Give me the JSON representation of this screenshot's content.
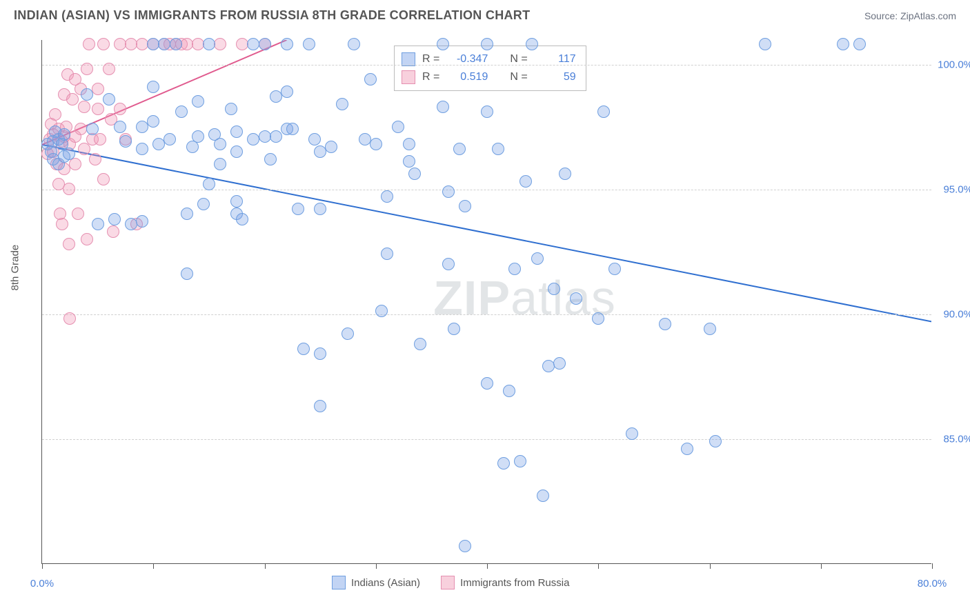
{
  "header": {
    "title": "INDIAN (ASIAN) VS IMMIGRANTS FROM RUSSIA 8TH GRADE CORRELATION CHART",
    "source": "Source: ZipAtlas.com"
  },
  "chart": {
    "type": "scatter",
    "ylabel": "8th Grade",
    "watermark": "ZIPatlas",
    "background_color": "#ffffff",
    "grid_color": "#d0d0d0",
    "axis_color": "#555555",
    "tick_label_color": "#4a7fd8",
    "marker_radius": 9,
    "xlim": [
      0,
      80
    ],
    "ylim": [
      80,
      101
    ],
    "x_ticks": [
      0,
      10,
      20,
      30,
      40,
      50,
      60,
      70,
      80
    ],
    "x_tick_labels": {
      "0": "0.0%",
      "80": "80.0%"
    },
    "y_ticks": [
      85,
      90,
      95,
      100
    ],
    "y_tick_labels": {
      "85": "85.0%",
      "90": "90.0%",
      "95": "95.0%",
      "100": "100.0%"
    },
    "series": {
      "blue": {
        "label": "Indians (Asian)",
        "fill": "rgba(120,160,230,0.35)",
        "stroke": "#6e9ee0",
        "trend_color": "#2f6fd0",
        "trend_width": 2,
        "trend": {
          "x1": 0,
          "y1": 96.8,
          "x2": 80,
          "y2": 89.7
        },
        "R": "-0.347",
        "N": "117",
        "points": [
          [
            0.5,
            96.8
          ],
          [
            0.8,
            96.5
          ],
          [
            1,
            96.9
          ],
          [
            1,
            96.2
          ],
          [
            1.2,
            97.3
          ],
          [
            1.5,
            97.0
          ],
          [
            1.5,
            96.0
          ],
          [
            1.8,
            96.8
          ],
          [
            2,
            97.2
          ],
          [
            2,
            96.3
          ],
          [
            2.4,
            96.4
          ],
          [
            4,
            98.8
          ],
          [
            4.5,
            97.4
          ],
          [
            5,
            93.6
          ],
          [
            6,
            98.6
          ],
          [
            6.5,
            93.8
          ],
          [
            7,
            97.5
          ],
          [
            7.5,
            96.9
          ],
          [
            8,
            93.6
          ],
          [
            9,
            97.5
          ],
          [
            9,
            96.6
          ],
          [
            9,
            93.7
          ],
          [
            10,
            100.8
          ],
          [
            10,
            99.1
          ],
          [
            10,
            97.7
          ],
          [
            10.5,
            96.8
          ],
          [
            11,
            100.8
          ],
          [
            11.5,
            97.0
          ],
          [
            12,
            100.8
          ],
          [
            12.5,
            98.1
          ],
          [
            13,
            94.0
          ],
          [
            13,
            91.6
          ],
          [
            13.5,
            96.7
          ],
          [
            14,
            98.5
          ],
          [
            14,
            97.1
          ],
          [
            14.5,
            94.4
          ],
          [
            15,
            100.8
          ],
          [
            15,
            95.2
          ],
          [
            15.5,
            97.2
          ],
          [
            16,
            96.8
          ],
          [
            16,
            96.0
          ],
          [
            17,
            98.2
          ],
          [
            17.5,
            97.3
          ],
          [
            17.5,
            96.5
          ],
          [
            17.5,
            94.5
          ],
          [
            17.5,
            94.0
          ],
          [
            18,
            93.8
          ],
          [
            19,
            97.0
          ],
          [
            19,
            100.8
          ],
          [
            20,
            97.1
          ],
          [
            20,
            100.8
          ],
          [
            20.5,
            96.2
          ],
          [
            21,
            98.7
          ],
          [
            21,
            97.1
          ],
          [
            22,
            100.8
          ],
          [
            22,
            98.9
          ],
          [
            22,
            97.4
          ],
          [
            22.5,
            97.4
          ],
          [
            23,
            94.2
          ],
          [
            23.5,
            88.6
          ],
          [
            24,
            100.8
          ],
          [
            24.5,
            97.0
          ],
          [
            25,
            96.5
          ],
          [
            25,
            94.2
          ],
          [
            25,
            88.4
          ],
          [
            25,
            86.3
          ],
          [
            26,
            96.7
          ],
          [
            27,
            98.4
          ],
          [
            27.5,
            89.2
          ],
          [
            28,
            100.8
          ],
          [
            29,
            97.0
          ],
          [
            29.5,
            99.4
          ],
          [
            30,
            96.8
          ],
          [
            30.5,
            90.1
          ],
          [
            31,
            94.7
          ],
          [
            31,
            92.4
          ],
          [
            32,
            97.5
          ],
          [
            33,
            96.8
          ],
          [
            33,
            96.1
          ],
          [
            33.5,
            95.6
          ],
          [
            34,
            88.8
          ],
          [
            36,
            100.8
          ],
          [
            36,
            98.3
          ],
          [
            36.5,
            94.9
          ],
          [
            36.5,
            92.0
          ],
          [
            37,
            89.4
          ],
          [
            37.5,
            96.6
          ],
          [
            38,
            94.3
          ],
          [
            38,
            80.7
          ],
          [
            40,
            100.8
          ],
          [
            40,
            98.1
          ],
          [
            40,
            87.2
          ],
          [
            41,
            96.6
          ],
          [
            41.5,
            84.0
          ],
          [
            42,
            86.9
          ],
          [
            42.5,
            91.8
          ],
          [
            43,
            84.1
          ],
          [
            43.5,
            95.3
          ],
          [
            44,
            100.8
          ],
          [
            44.5,
            92.2
          ],
          [
            45,
            82.7
          ],
          [
            45.5,
            87.9
          ],
          [
            46,
            91.0
          ],
          [
            46.5,
            88.0
          ],
          [
            47,
            95.6
          ],
          [
            48,
            90.6
          ],
          [
            50,
            89.8
          ],
          [
            50.5,
            98.1
          ],
          [
            51.5,
            91.8
          ],
          [
            53,
            85.2
          ],
          [
            56,
            89.6
          ],
          [
            58,
            84.6
          ],
          [
            60,
            89.4
          ],
          [
            60.5,
            84.9
          ],
          [
            65,
            100.8
          ],
          [
            72,
            100.8
          ],
          [
            73.5,
            100.8
          ]
        ]
      },
      "pink": {
        "label": "Immigrants from Russia",
        "fill": "rgba(240,150,180,0.35)",
        "stroke": "#e58fb0",
        "trend_color": "#e05a8e",
        "trend_width": 2,
        "trend": {
          "x1": 0,
          "y1": 96.8,
          "x2": 22,
          "y2": 101
        },
        "R": "0.519",
        "N": "59",
        "points": [
          [
            0.5,
            96.4
          ],
          [
            0.7,
            97.0
          ],
          [
            0.8,
            97.6
          ],
          [
            1,
            97.2
          ],
          [
            1,
            96.5
          ],
          [
            1.2,
            98.0
          ],
          [
            1.3,
            96.0
          ],
          [
            1.5,
            97.4
          ],
          [
            1.5,
            95.2
          ],
          [
            1.6,
            94.0
          ],
          [
            1.8,
            96.9
          ],
          [
            1.8,
            93.6
          ],
          [
            2,
            98.8
          ],
          [
            2,
            97.1
          ],
          [
            2,
            95.8
          ],
          [
            2.2,
            97.5
          ],
          [
            2.3,
            99.6
          ],
          [
            2.4,
            95.0
          ],
          [
            2.4,
            92.8
          ],
          [
            2.5,
            96.8
          ],
          [
            2.5,
            89.8
          ],
          [
            2.7,
            98.6
          ],
          [
            3,
            99.4
          ],
          [
            3,
            97.1
          ],
          [
            3,
            96.0
          ],
          [
            3.2,
            94.0
          ],
          [
            3.5,
            99.0
          ],
          [
            3.5,
            97.4
          ],
          [
            3.8,
            98.3
          ],
          [
            3.8,
            96.6
          ],
          [
            4,
            93.0
          ],
          [
            4,
            99.8
          ],
          [
            4.2,
            100.8
          ],
          [
            4.5,
            97.0
          ],
          [
            4.8,
            96.2
          ],
          [
            5,
            99.0
          ],
          [
            5,
            98.2
          ],
          [
            5.2,
            97.0
          ],
          [
            5.5,
            95.4
          ],
          [
            5.5,
            100.8
          ],
          [
            6,
            99.8
          ],
          [
            6.2,
            97.8
          ],
          [
            6.4,
            93.3
          ],
          [
            7,
            98.2
          ],
          [
            7,
            100.8
          ],
          [
            7.5,
            97.0
          ],
          [
            8,
            100.8
          ],
          [
            8.5,
            93.6
          ],
          [
            9,
            100.8
          ],
          [
            10,
            100.8
          ],
          [
            11,
            100.8
          ],
          [
            11.5,
            100.8
          ],
          [
            12,
            100.8
          ],
          [
            12.5,
            100.8
          ],
          [
            13,
            100.8
          ],
          [
            14,
            100.8
          ],
          [
            16,
            100.8
          ],
          [
            18,
            100.8
          ],
          [
            20,
            100.8
          ]
        ]
      }
    },
    "stat_legend": {
      "r_label": "R =",
      "n_label": "N ="
    },
    "bottom_legend": true
  }
}
